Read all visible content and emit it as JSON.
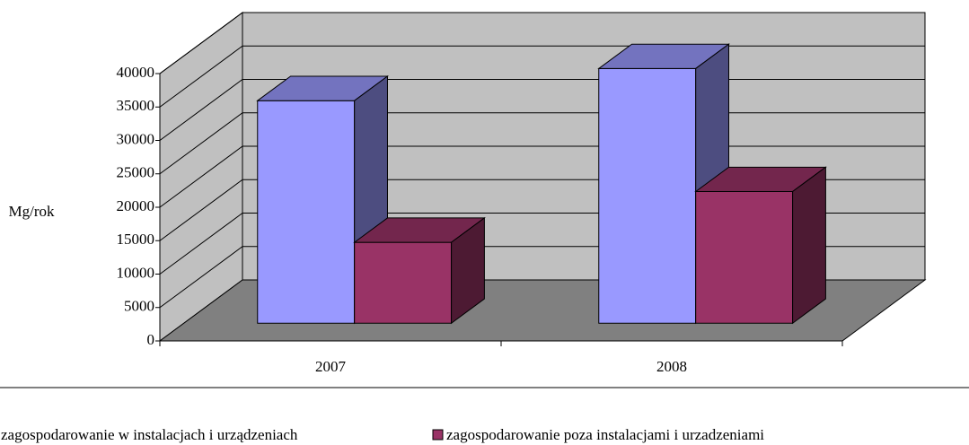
{
  "chart_data": {
    "type": "bar3d",
    "ylabel": "Mg/rok",
    "categories": [
      "2007",
      "2008"
    ],
    "series": [
      {
        "name": "zagospodarowanie w instalacjach i urządzeniach",
        "color": "#9999ff",
        "values": [
          33300,
          38100
        ]
      },
      {
        "name": "zagospodarowanie poza instalacjami i urzadzeniami",
        "color": "#993366",
        "values": [
          12100,
          19700
        ]
      }
    ],
    "ylim": [
      0,
      40000
    ],
    "yticks": [
      0,
      5000,
      10000,
      15000,
      20000,
      25000,
      30000,
      35000,
      40000
    ],
    "grid": true,
    "legend": "bottom"
  }
}
